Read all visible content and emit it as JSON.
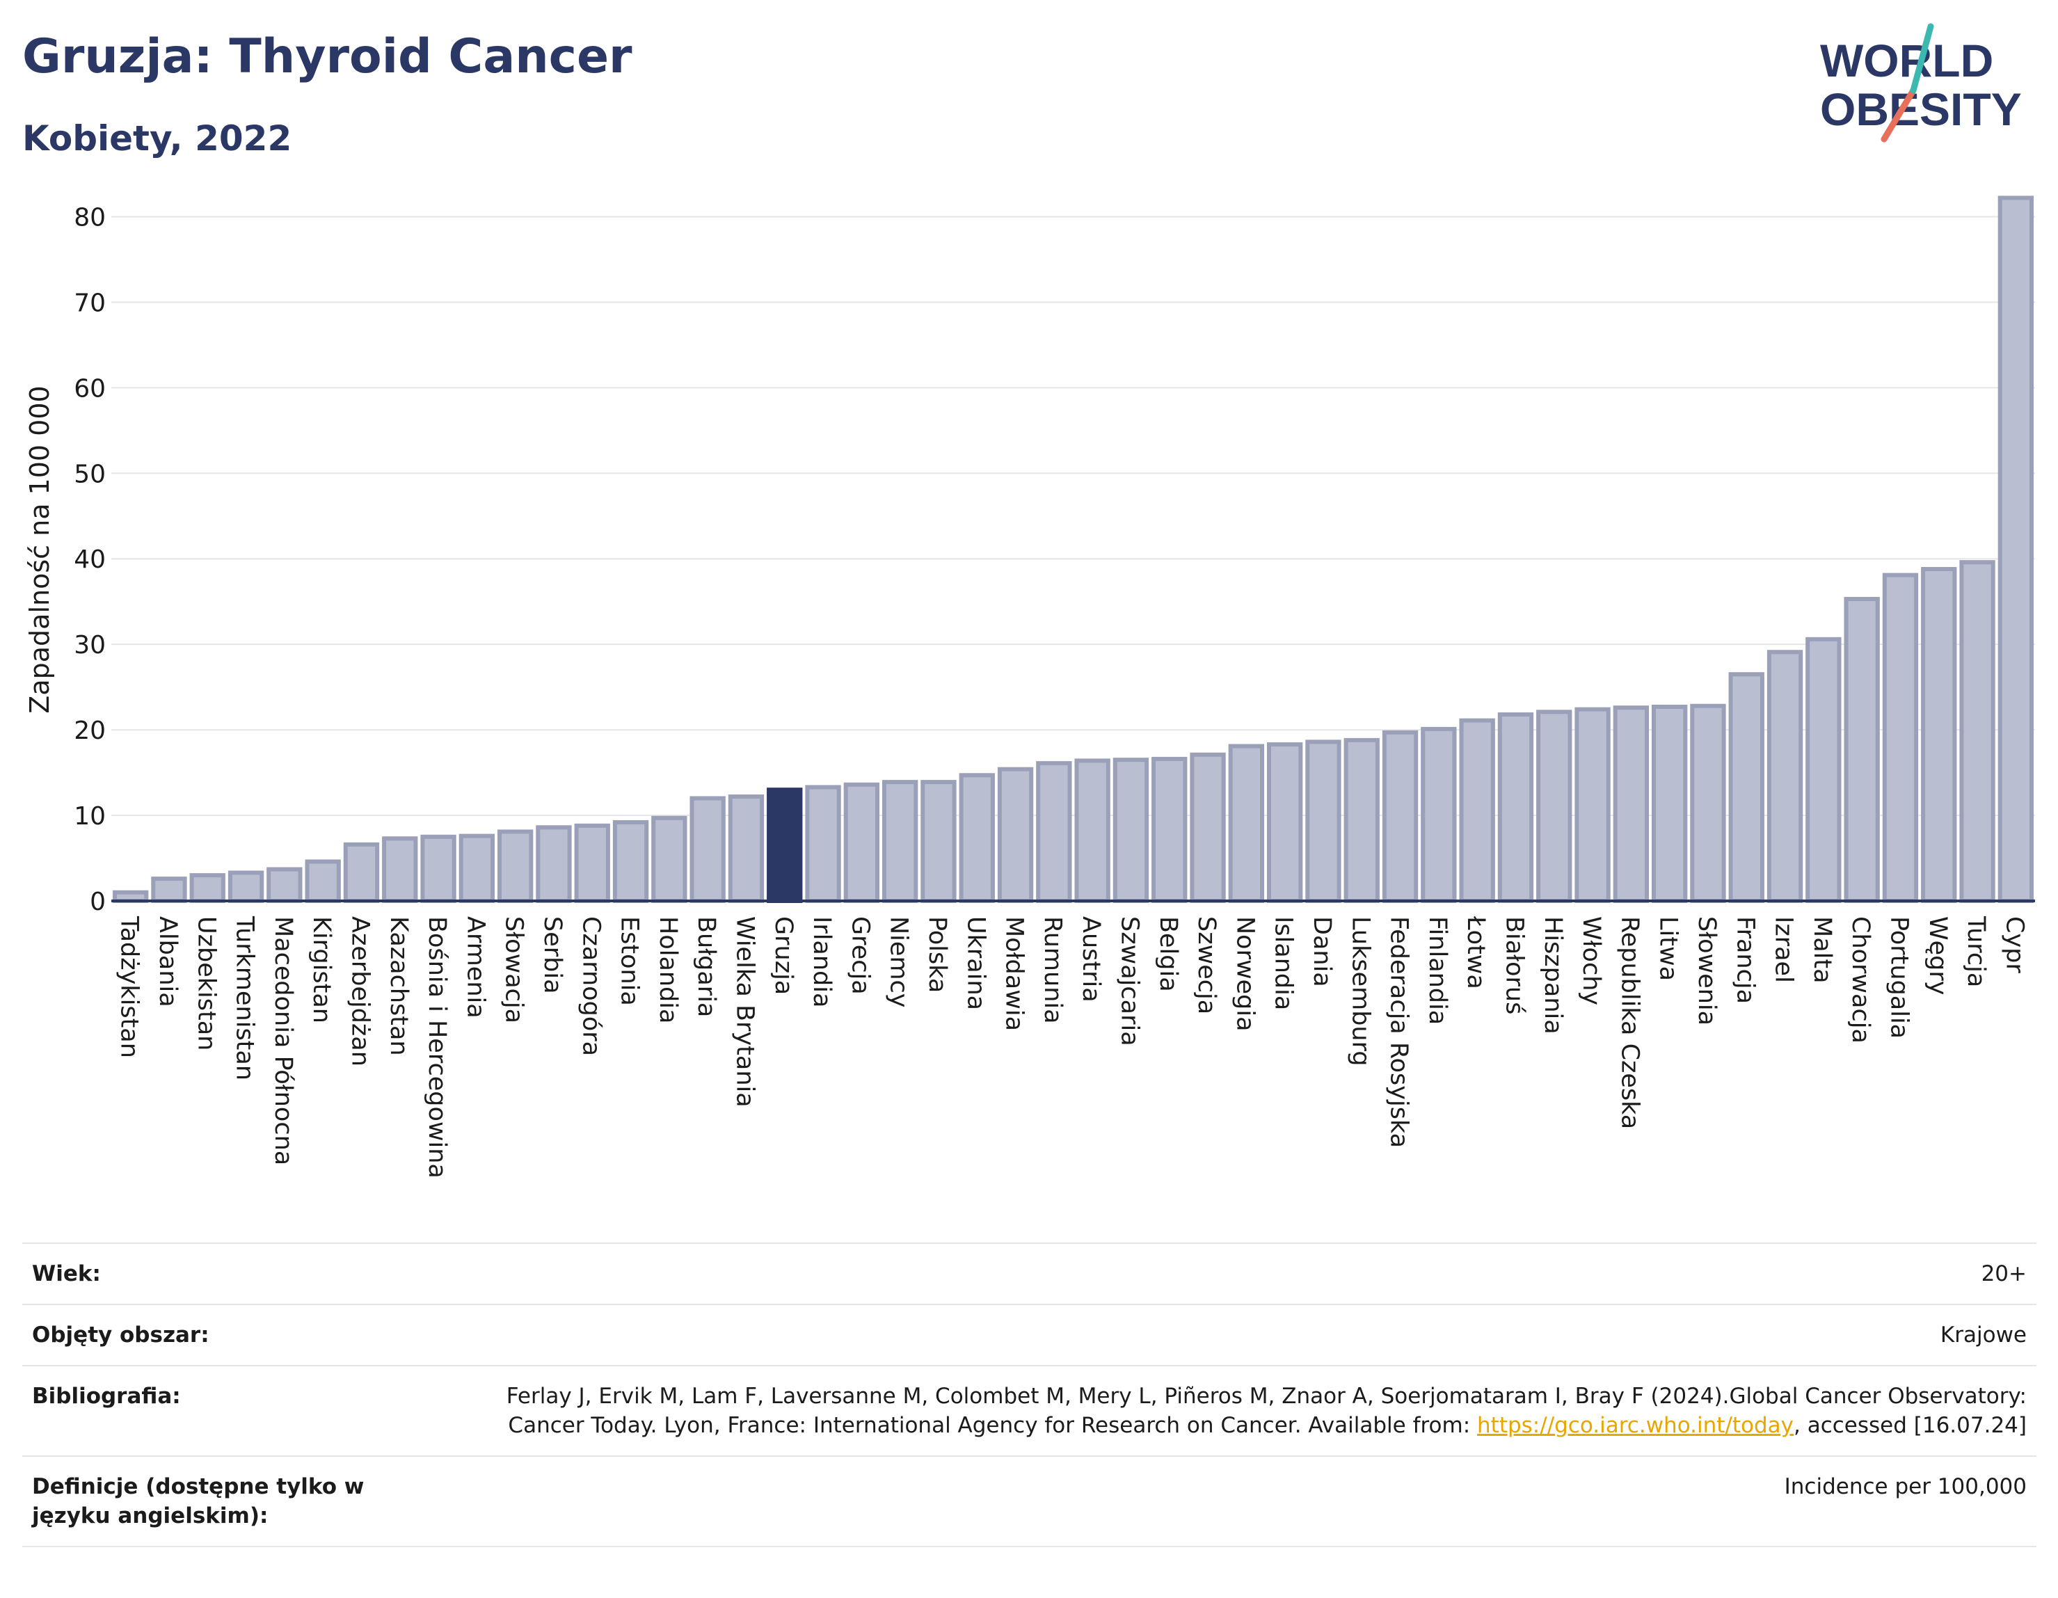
{
  "header": {
    "title": "Gruzja: Thyroid Cancer",
    "subtitle": "Kobiety, 2022"
  },
  "logo": {
    "line1": "WORLD",
    "line2": "OBESITY"
  },
  "colors": {
    "bar": "#b9bed0",
    "bar_border": "#9aa0b8",
    "highlight": "#2b3866",
    "title": "#2b3866",
    "link": "#e8a600"
  },
  "chart_data": {
    "type": "bar",
    "ylabel": "Zapadalność na 100 000",
    "ylim": [
      0,
      85
    ],
    "yticks": [
      0,
      10,
      20,
      30,
      40,
      50,
      60,
      70,
      80
    ],
    "grid": true,
    "highlight": "Gruzja",
    "categories": [
      "Tadżykistan",
      "Albania",
      "Uzbekistan",
      "Turkmenistan",
      "Macedonia Północna",
      "Kirgistan",
      "Azerbejdżan",
      "Kazachstan",
      "Bośnia i Hercegowina",
      "Armenia",
      "Słowacja",
      "Serbia",
      "Czarnogóra",
      "Estonia",
      "Holandia",
      "Bułgaria",
      "Wielka Brytania",
      "Gruzja",
      "Irlandia",
      "Grecja",
      "Niemcy",
      "Polska",
      "Ukraina",
      "Mołdawia",
      "Rumunia",
      "Austria",
      "Szwajcaria",
      "Belgia",
      "Szwecja",
      "Norwegia",
      "Islandia",
      "Dania",
      "Luksemburg",
      "Federacja Rosyjska",
      "Finlandia",
      "Łotwa",
      "Białoruś",
      "Hiszpania",
      "Włochy",
      "Republika Czeska",
      "Litwa",
      "Słowenia",
      "Francja",
      "Izrael",
      "Malta",
      "Chorwacja",
      "Portugalia",
      "Węgry",
      "Turcja",
      "Cypr"
    ],
    "values": [
      1.0,
      2.6,
      3.0,
      3.3,
      3.7,
      4.6,
      6.6,
      7.3,
      7.5,
      7.6,
      8.1,
      8.6,
      8.8,
      9.2,
      9.7,
      12.0,
      12.2,
      13.0,
      13.3,
      13.6,
      13.9,
      13.9,
      14.7,
      15.4,
      16.1,
      16.4,
      16.5,
      16.6,
      17.1,
      18.1,
      18.3,
      18.6,
      18.8,
      19.7,
      20.1,
      21.1,
      21.8,
      22.1,
      22.4,
      22.6,
      22.7,
      22.8,
      26.5,
      29.1,
      30.6,
      35.3,
      38.1,
      38.8,
      39.6,
      82.2
    ]
  },
  "meta": [
    {
      "label": "Wiek:",
      "value": "20+"
    },
    {
      "label": "Objęty obszar:",
      "value": "Krajowe"
    },
    {
      "label": "Bibliografia:",
      "value_pre": "Ferlay J, Ervik M, Lam F, Laversanne M, Colombet M, Mery L, Piñeros M, Znaor A, Soerjomataram I, Bray F (2024).Global Cancer Observatory: Cancer Today. Lyon, France: International Agency for Research on Cancer. Available from: ",
      "link": "https://gco.iarc.who.int/today",
      "value_post": ", accessed [16.07.24]"
    },
    {
      "label": "Definicje (dostępne tylko w języku angielskim):",
      "value": "Incidence per 100,000"
    }
  ]
}
